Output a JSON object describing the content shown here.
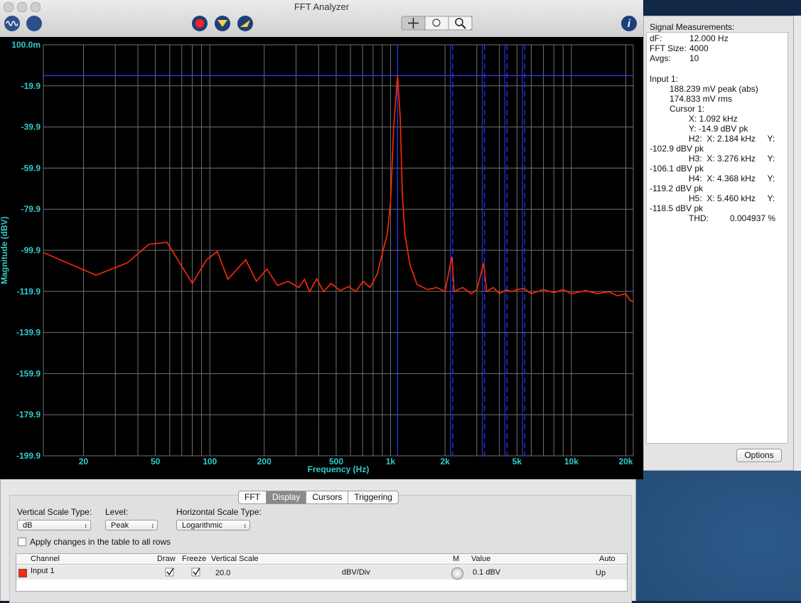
{
  "window_title": "FFT Analyzer",
  "chart_data": {
    "type": "line",
    "xlabel": "Frequency (Hz)",
    "ylabel": "Magnitude (dBV)",
    "xscale": "log",
    "grid": true,
    "background": "#000000",
    "xlim": [
      12,
      22000
    ],
    "ylim": [
      -199.9,
      0.1
    ],
    "xticks": [
      20,
      50,
      100,
      200,
      500,
      {
        "value": 1000,
        "label": "1k"
      },
      {
        "value": 2000,
        "label": "2k"
      },
      {
        "value": 5000,
        "label": "5k"
      },
      {
        "value": 10000,
        "label": "10k"
      },
      {
        "value": 20000,
        "label": "20k"
      }
    ],
    "x_minor_grid": [
      30,
      40,
      60,
      70,
      80,
      90,
      300,
      400,
      600,
      700,
      800,
      900,
      3000,
      4000,
      6000,
      7000,
      8000,
      9000
    ],
    "yticks": [
      {
        "value": 0.1,
        "label": "100.0m"
      },
      -19.9,
      -39.9,
      -59.9,
      -79.9,
      -99.9,
      -119.9,
      -139.9,
      -159.9,
      -179.9,
      -199.9
    ],
    "series": [
      {
        "name": "Input 1",
        "color": "#ff2a0a",
        "x": [
          12,
          23.5,
          35,
          46,
          58,
          80,
          96,
          110,
          126,
          158,
          181,
          207,
          237,
          271,
          311,
          334,
          356,
          390,
          427,
          468,
          526,
          587,
          642,
          704,
          770,
          843,
          924,
          960,
          1000,
          1040,
          1092,
          1130,
          1160,
          1200,
          1280,
          1400,
          1600,
          1800,
          2000,
          2184,
          2250,
          2500,
          2800,
          3000,
          3276,
          3400,
          3700,
          4000,
          4368,
          4700,
          5000,
          5460,
          6000,
          7000,
          8000,
          9000,
          10000,
          12000,
          14000,
          16000,
          18000,
          20000,
          21000,
          22000
        ],
        "values": [
          -101,
          -112,
          -106,
          -97,
          -96,
          -116,
          -104.5,
          -100.5,
          -114,
          -104.5,
          -115,
          -109,
          -117,
          -115,
          -118,
          -114,
          -120,
          -113.8,
          -120,
          -116,
          -119.5,
          -117.5,
          -120,
          -115,
          -118,
          -111.5,
          -97.5,
          -92,
          -76,
          -40,
          -14.9,
          -35,
          -72,
          -92,
          -107,
          -116.5,
          -119,
          -118,
          -120,
          -102.9,
          -120,
          -118,
          -121,
          -119,
          -106.1,
          -120,
          -118,
          -121,
          -119.2,
          -120,
          -119,
          -118.5,
          -121,
          -119,
          -120.5,
          -119,
          -121,
          -119.5,
          -121,
          -120,
          -122,
          -121,
          -124,
          -125
        ]
      }
    ],
    "cursors": {
      "color": "#2a3cff",
      "x": 1092,
      "y": -14.9,
      "harmonics": [
        2184,
        3276,
        4368,
        5460
      ]
    }
  },
  "measurements": {
    "title": "Signal Measurements:",
    "header_lines": [
      "dF:",
      "FFT Size:",
      "Avgs:"
    ],
    "header_values": [
      "12.000 Hz",
      "4000",
      "10"
    ],
    "input_lines": [
      "Input 1:",
      "188.239 mV peak (abs)",
      "174.833 mV rms",
      "Cursor 1:",
      "X: 1.092 kHz",
      "Y: -14.9 dBV pk",
      "H2:  X: 2.184 kHz     Y:",
      "-102.9 dBV pk",
      "H3:  X: 3.276 kHz     Y:",
      "-106.1 dBV pk",
      "H4:  X: 4.368 kHz     Y:",
      "-119.2 dBV pk",
      "H5:  X: 5.460 kHz     Y:",
      "-118.5 dBV pk",
      "THD:         0.004937 %"
    ]
  },
  "options_button": "Options",
  "tabs": [
    "FFT",
    "Display",
    "Cursors",
    "Triggering"
  ],
  "settings": {
    "vertical_scale_type_label": "Vertical Scale Type:",
    "vertical_scale_type": "dB",
    "level_label": "Level:",
    "level": "Peak",
    "horizontal_scale_type_label": "Horizontal Scale Type:",
    "horizontal_scale_type": "Logarithmic",
    "apply_all": "Apply changes in the table to all rows"
  },
  "table": {
    "headers": [
      "Channel",
      "Draw",
      "Freeze",
      "Vertical Scale",
      "M",
      "Value",
      "Auto"
    ],
    "row": {
      "vertical_scale": "20.0",
      "unit": "dBV/Div",
      "value": "0.1 dBV",
      "auto": "Up"
    }
  }
}
